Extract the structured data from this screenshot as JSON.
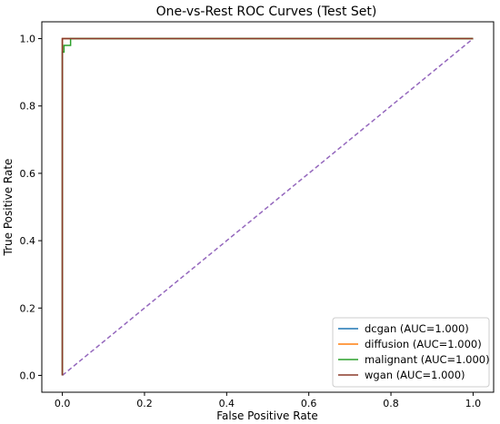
{
  "chart_data": {
    "type": "line",
    "title": "One-vs-Rest ROC Curves (Test Set)",
    "xlabel": "False Positive Rate",
    "ylabel": "True Positive Rate",
    "xlim": [
      -0.05,
      1.05
    ],
    "ylim": [
      -0.05,
      1.05
    ],
    "xticks": [
      0.0,
      0.2,
      0.4,
      0.6,
      0.8,
      1.0
    ],
    "yticks": [
      0.0,
      0.2,
      0.4,
      0.6,
      0.8,
      1.0
    ],
    "xtick_labels": [
      "0.0",
      "0.2",
      "0.4",
      "0.6",
      "0.8",
      "1.0"
    ],
    "ytick_labels": [
      "0.0",
      "0.2",
      "0.4",
      "0.6",
      "0.8",
      "1.0"
    ],
    "grid": false,
    "legend_position": "lower-right",
    "series": [
      {
        "name": "dcgan (AUC=1.000)",
        "color": "#1f77b4",
        "x": [
          0.0,
          0.0,
          0.0,
          1.0
        ],
        "y": [
          0.0,
          0.97,
          1.0,
          1.0
        ]
      },
      {
        "name": "diffusion (AUC=1.000)",
        "color": "#ff7f0e",
        "x": [
          0.0,
          0.0,
          0.0,
          1.0
        ],
        "y": [
          0.0,
          0.96,
          1.0,
          1.0
        ]
      },
      {
        "name": "malignant (AUC=1.000)",
        "color": "#2ca02c",
        "x": [
          0.0,
          0.0,
          0.004,
          0.004,
          0.02,
          0.02,
          1.0
        ],
        "y": [
          0.0,
          0.96,
          0.96,
          0.98,
          0.98,
          1.0,
          1.0
        ]
      },
      {
        "name": "wgan (AUC=1.000)",
        "color": "#8c3a2a",
        "x": [
          0.0,
          0.0,
          0.0,
          1.0
        ],
        "y": [
          0.0,
          0.98,
          1.0,
          1.0
        ]
      }
    ],
    "reference_line": {
      "color": "#9467bd",
      "style": "dashed",
      "x": [
        0.0,
        1.0
      ],
      "y": [
        0.0,
        1.0
      ]
    }
  }
}
